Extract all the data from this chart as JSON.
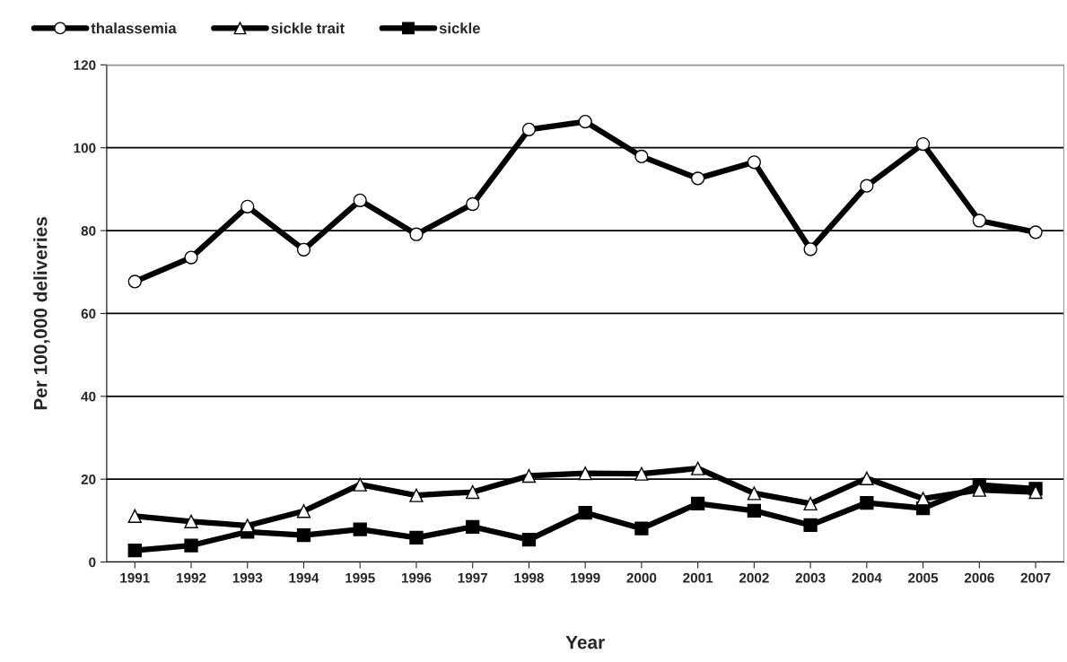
{
  "chart_data": {
    "type": "line",
    "xlabel": "Year",
    "ylabel": "Per 100,000 deliveries",
    "categories": [
      "1991",
      "1992",
      "1993",
      "1994",
      "1995",
      "1996",
      "1997",
      "1998",
      "1999",
      "2000",
      "2001",
      "2002",
      "2003",
      "2004",
      "2005",
      "2006",
      "2007"
    ],
    "series": [
      {
        "name": "thalassemia",
        "color": "#000000",
        "marker": "circle",
        "values": [
          67.7,
          73.5,
          85.8,
          75.4,
          87.3,
          79.1,
          86.4,
          104.4,
          106.3,
          97.9,
          92.6,
          96.5,
          75.5,
          90.8,
          100.9,
          82.4,
          79.6
        ]
      },
      {
        "name": "sickle trait",
        "color": "#000000",
        "marker": "triangle",
        "values": [
          11.1,
          9.8,
          8.8,
          12.3,
          18.7,
          16.1,
          16.9,
          20.8,
          21.4,
          21.3,
          22.6,
          16.6,
          14.1,
          20.2,
          15.3,
          17.4,
          16.9
        ]
      },
      {
        "name": "sickle",
        "color": "#000000",
        "marker": "square",
        "values": [
          2.8,
          4.0,
          7.3,
          6.5,
          7.9,
          5.9,
          8.5,
          5.4,
          11.9,
          8.1,
          14.1,
          12.4,
          8.9,
          14.3,
          13.0,
          18.6,
          17.7
        ]
      }
    ],
    "ylim": [
      0,
      120
    ],
    "yticks": [
      0,
      20,
      40,
      60,
      80,
      100,
      120
    ],
    "grid": "y",
    "legend": "top left",
    "line_style": "solid"
  }
}
